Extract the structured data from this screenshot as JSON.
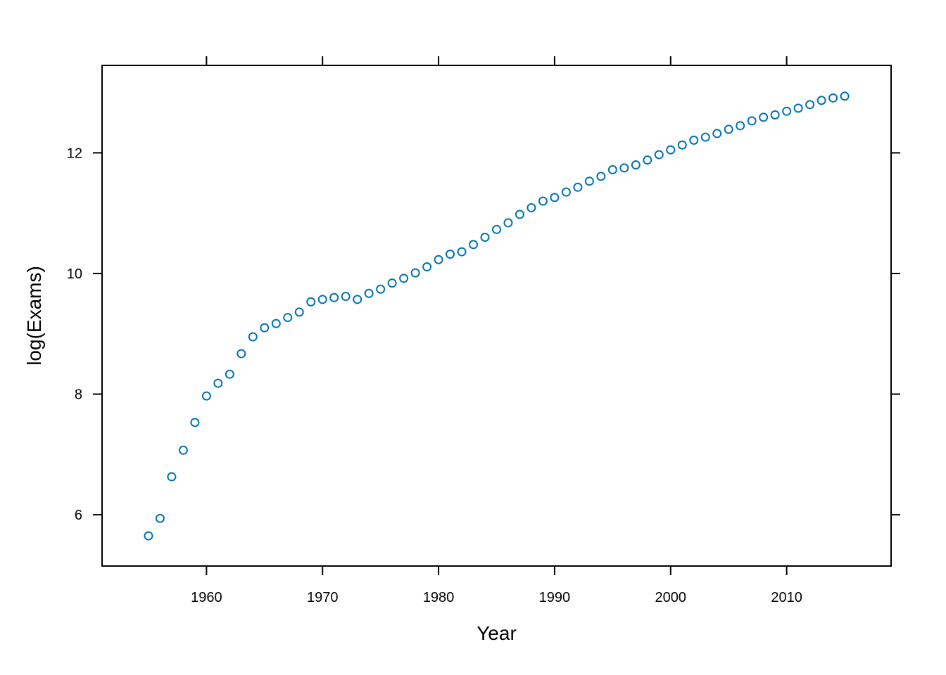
{
  "chart_data": {
    "type": "scatter",
    "title": "",
    "xlabel": "Year",
    "ylabel": "log(Exams)",
    "xlim": [
      1951,
      2019
    ],
    "ylim": [
      5.15,
      13.45
    ],
    "x_ticks": [
      1960,
      1970,
      1980,
      1990,
      2000,
      2010
    ],
    "y_ticks": [
      6,
      8,
      10,
      12
    ],
    "x_tick_labels": [
      "1960",
      "1970",
      "1980",
      "1990",
      "2000",
      "2010"
    ],
    "y_tick_labels": [
      "6",
      "8",
      "10",
      "12"
    ],
    "grid": false,
    "legend": "none",
    "marker": "open-circle",
    "point_color": "#0072B2",
    "x": [
      1955,
      1956,
      1957,
      1958,
      1959,
      1960,
      1961,
      1962,
      1963,
      1964,
      1965,
      1966,
      1967,
      1968,
      1969,
      1970,
      1971,
      1972,
      1973,
      1974,
      1975,
      1976,
      1977,
      1978,
      1979,
      1980,
      1981,
      1982,
      1983,
      1984,
      1985,
      1986,
      1987,
      1988,
      1989,
      1990,
      1991,
      1992,
      1993,
      1994,
      1995,
      1996,
      1997,
      1998,
      1999,
      2000,
      2001,
      2002,
      2003,
      2004,
      2005,
      2006,
      2007,
      2008,
      2009,
      2010,
      2011,
      2012,
      2013,
      2014,
      2015
    ],
    "y": [
      5.65,
      5.94,
      6.63,
      7.07,
      7.53,
      7.97,
      8.18,
      8.33,
      8.67,
      8.95,
      9.1,
      9.17,
      9.27,
      9.36,
      9.53,
      9.57,
      9.6,
      9.62,
      9.57,
      9.67,
      9.74,
      9.84,
      9.92,
      10.01,
      10.11,
      10.23,
      10.32,
      10.36,
      10.48,
      10.6,
      10.73,
      10.84,
      10.98,
      11.09,
      11.2,
      11.26,
      11.35,
      11.43,
      11.53,
      11.61,
      11.72,
      11.75,
      11.8,
      11.88,
      11.97,
      12.05,
      12.13,
      12.21,
      12.26,
      12.32,
      12.39,
      12.45,
      12.53,
      12.59,
      12.63,
      12.69,
      12.74,
      12.8,
      12.87,
      12.91,
      12.94
    ]
  }
}
